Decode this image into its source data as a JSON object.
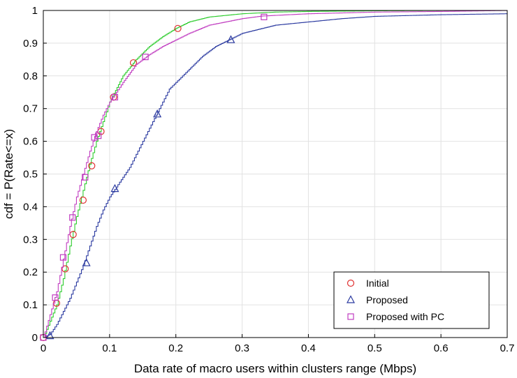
{
  "chart_data": {
    "type": "line",
    "xlabel": "Data rate of macro users within clusters range (Mbps)",
    "ylabel": "cdf = P(Rate<=x)",
    "xlim": [
      0,
      0.7
    ],
    "ylim": [
      0,
      1
    ],
    "xticks": [
      "0",
      "0.1",
      "0.2",
      "0.3",
      "0.4",
      "0.5",
      "0.6",
      "0.7"
    ],
    "yticks": [
      "0",
      "0.1",
      "0.2",
      "0.3",
      "0.4",
      "0.5",
      "0.6",
      "0.7",
      "0.8",
      "0.9",
      "1"
    ],
    "grid": true,
    "legend_position": "bottom-right",
    "series": [
      {
        "name": "Initial",
        "color": "#2ecc2e",
        "marker_color": "#e03030",
        "marker": "circle",
        "x": [
          0,
          0.01,
          0.02,
          0.03,
          0.04,
          0.05,
          0.06,
          0.07,
          0.08,
          0.09,
          0.1,
          0.12,
          0.14,
          0.16,
          0.18,
          0.2,
          0.22,
          0.25,
          0.3,
          0.35,
          0.4,
          0.5,
          0.6,
          0.7
        ],
        "values": [
          0,
          0.05,
          0.1,
          0.18,
          0.28,
          0.37,
          0.45,
          0.53,
          0.6,
          0.66,
          0.72,
          0.8,
          0.85,
          0.89,
          0.92,
          0.945,
          0.965,
          0.98,
          0.99,
          0.995,
          0.997,
          0.999,
          1.0,
          1.0
        ],
        "marker_x": [
          0,
          0.02,
          0.033,
          0.045,
          0.06,
          0.073,
          0.087,
          0.106,
          0.136,
          0.203
        ],
        "marker_y": [
          0,
          0.105,
          0.21,
          0.315,
          0.42,
          0.525,
          0.63,
          0.735,
          0.84,
          0.945
        ]
      },
      {
        "name": "Proposed",
        "color": "#2b3aa0",
        "marker_color": "#2b3aa0",
        "marker": "triangle",
        "x": [
          0,
          0.01,
          0.02,
          0.03,
          0.04,
          0.05,
          0.06,
          0.07,
          0.08,
          0.09,
          0.1,
          0.11,
          0.12,
          0.13,
          0.14,
          0.15,
          0.16,
          0.17,
          0.18,
          0.19,
          0.2,
          0.21,
          0.22,
          0.24,
          0.26,
          0.28,
          0.3,
          0.35,
          0.4,
          0.45,
          0.5,
          0.6,
          0.7
        ],
        "values": [
          0,
          0.01,
          0.04,
          0.08,
          0.12,
          0.17,
          0.22,
          0.28,
          0.34,
          0.39,
          0.43,
          0.46,
          0.49,
          0.52,
          0.56,
          0.6,
          0.64,
          0.68,
          0.72,
          0.76,
          0.78,
          0.8,
          0.82,
          0.86,
          0.89,
          0.91,
          0.93,
          0.955,
          0.965,
          0.975,
          0.982,
          0.987,
          0.99
        ],
        "marker_x": [
          0.01,
          0.065,
          0.108,
          0.172,
          0.283
        ],
        "marker_y": [
          0.005,
          0.228,
          0.455,
          0.683,
          0.91
        ]
      },
      {
        "name": "Proposed with PC",
        "color": "#c03cc0",
        "marker_color": "#c03cc0",
        "marker": "square",
        "x": [
          0,
          0.01,
          0.02,
          0.03,
          0.04,
          0.05,
          0.06,
          0.07,
          0.08,
          0.09,
          0.1,
          0.11,
          0.12,
          0.14,
          0.16,
          0.18,
          0.2,
          0.22,
          0.25,
          0.3,
          0.33,
          0.4,
          0.5,
          0.6,
          0.7
        ],
        "values": [
          0,
          0.07,
          0.14,
          0.24,
          0.34,
          0.43,
          0.5,
          0.57,
          0.63,
          0.68,
          0.72,
          0.75,
          0.78,
          0.835,
          0.865,
          0.89,
          0.91,
          0.93,
          0.955,
          0.975,
          0.983,
          0.99,
          0.995,
          0.997,
          1.0
        ],
        "marker_x": [
          0,
          0.018,
          0.03,
          0.044,
          0.063,
          0.077,
          0.083,
          0.108,
          0.154,
          0.333
        ],
        "marker_y": [
          0,
          0.122,
          0.245,
          0.367,
          0.49,
          0.612,
          0.617,
          0.735,
          0.858,
          0.98
        ]
      }
    ]
  }
}
